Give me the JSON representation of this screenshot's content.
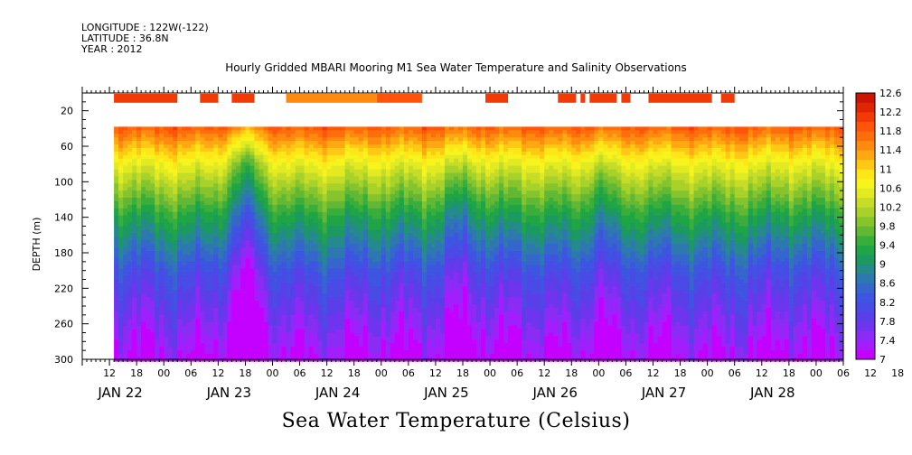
{
  "header": {
    "longitude": "LONGITUDE : 122W(-122)",
    "latitude": "LATITUDE : 36.8N",
    "year": "YEAR : 2012"
  },
  "title": "Hourly Gridded MBARI Mooring M1 Sea Water Temperature and Salinity Observations",
  "bottom_title": "Sea Water Temperature (Celsius)",
  "chart_data": {
    "type": "heatmap",
    "ylabel": "DEPTH (m)",
    "y_range": [
      300,
      0
    ],
    "y_ticks": [
      20,
      60,
      100,
      140,
      180,
      220,
      260,
      300
    ],
    "x_start_hour": 6,
    "x_end_hour": 174,
    "data_start_hour": 13,
    "hour_tick_labels": [
      "12",
      "18",
      "00",
      "06",
      "12",
      "18",
      "00",
      "06",
      "12",
      "18",
      "00",
      "06",
      "12",
      "18",
      "00",
      "06",
      "12",
      "18",
      "00",
      "06",
      "12",
      "18",
      "00",
      "06",
      "12",
      "18",
      "00",
      "06",
      "12",
      "18",
      "00"
    ],
    "day_labels": [
      "JAN 22",
      "JAN 23",
      "JAN 24",
      "JAN 25",
      "JAN 26",
      "JAN 27",
      "JAN 28"
    ],
    "colorbar": {
      "min": 7.0,
      "max": 12.6,
      "step": 0.2,
      "tick_labels": [
        "12.6",
        "12.2",
        "11.8",
        "11.4",
        "11",
        "10.6",
        "10.2",
        "9.8",
        "9.4",
        "9",
        "8.6",
        "8.2",
        "7.8",
        "7.4",
        "7"
      ],
      "colors": [
        "#c400ff",
        "#a21eff",
        "#8a2cf4",
        "#6f35ee",
        "#5a3fe8",
        "#4a4ae6",
        "#3d55e0",
        "#3466cc",
        "#2e78b0",
        "#248a8c",
        "#1c9960",
        "#1fa446",
        "#3aae3a",
        "#62b834",
        "#86c42e",
        "#a8d229",
        "#c6dc26",
        "#e2ea22",
        "#f6f41c",
        "#ffe619",
        "#ffc815",
        "#ffa812",
        "#ff8a0f",
        "#ff6d0c",
        "#ff5409",
        "#f23a07",
        "#e02505",
        "#cc1404"
      ]
    },
    "surface_sst_blocks": [
      {
        "start": 13,
        "end": 27,
        "value": 12.0
      },
      {
        "start": 32,
        "end": 36,
        "value": 12.0
      },
      {
        "start": 39,
        "end": 44,
        "value": 12.0
      },
      {
        "start": 51,
        "end": 71,
        "value": 11.4
      },
      {
        "start": 71,
        "end": 81,
        "value": 11.8
      },
      {
        "start": 95,
        "end": 100,
        "value": 12.0
      },
      {
        "start": 111,
        "end": 115,
        "value": 12.0
      },
      {
        "start": 116,
        "end": 117,
        "value": 12.0
      },
      {
        "start": 118,
        "end": 124,
        "value": 12.0
      },
      {
        "start": 125,
        "end": 127,
        "value": 12.0
      },
      {
        "start": 131,
        "end": 145,
        "value": 12.2
      },
      {
        "start": 147,
        "end": 150,
        "value": 12.0
      }
    ]
  }
}
